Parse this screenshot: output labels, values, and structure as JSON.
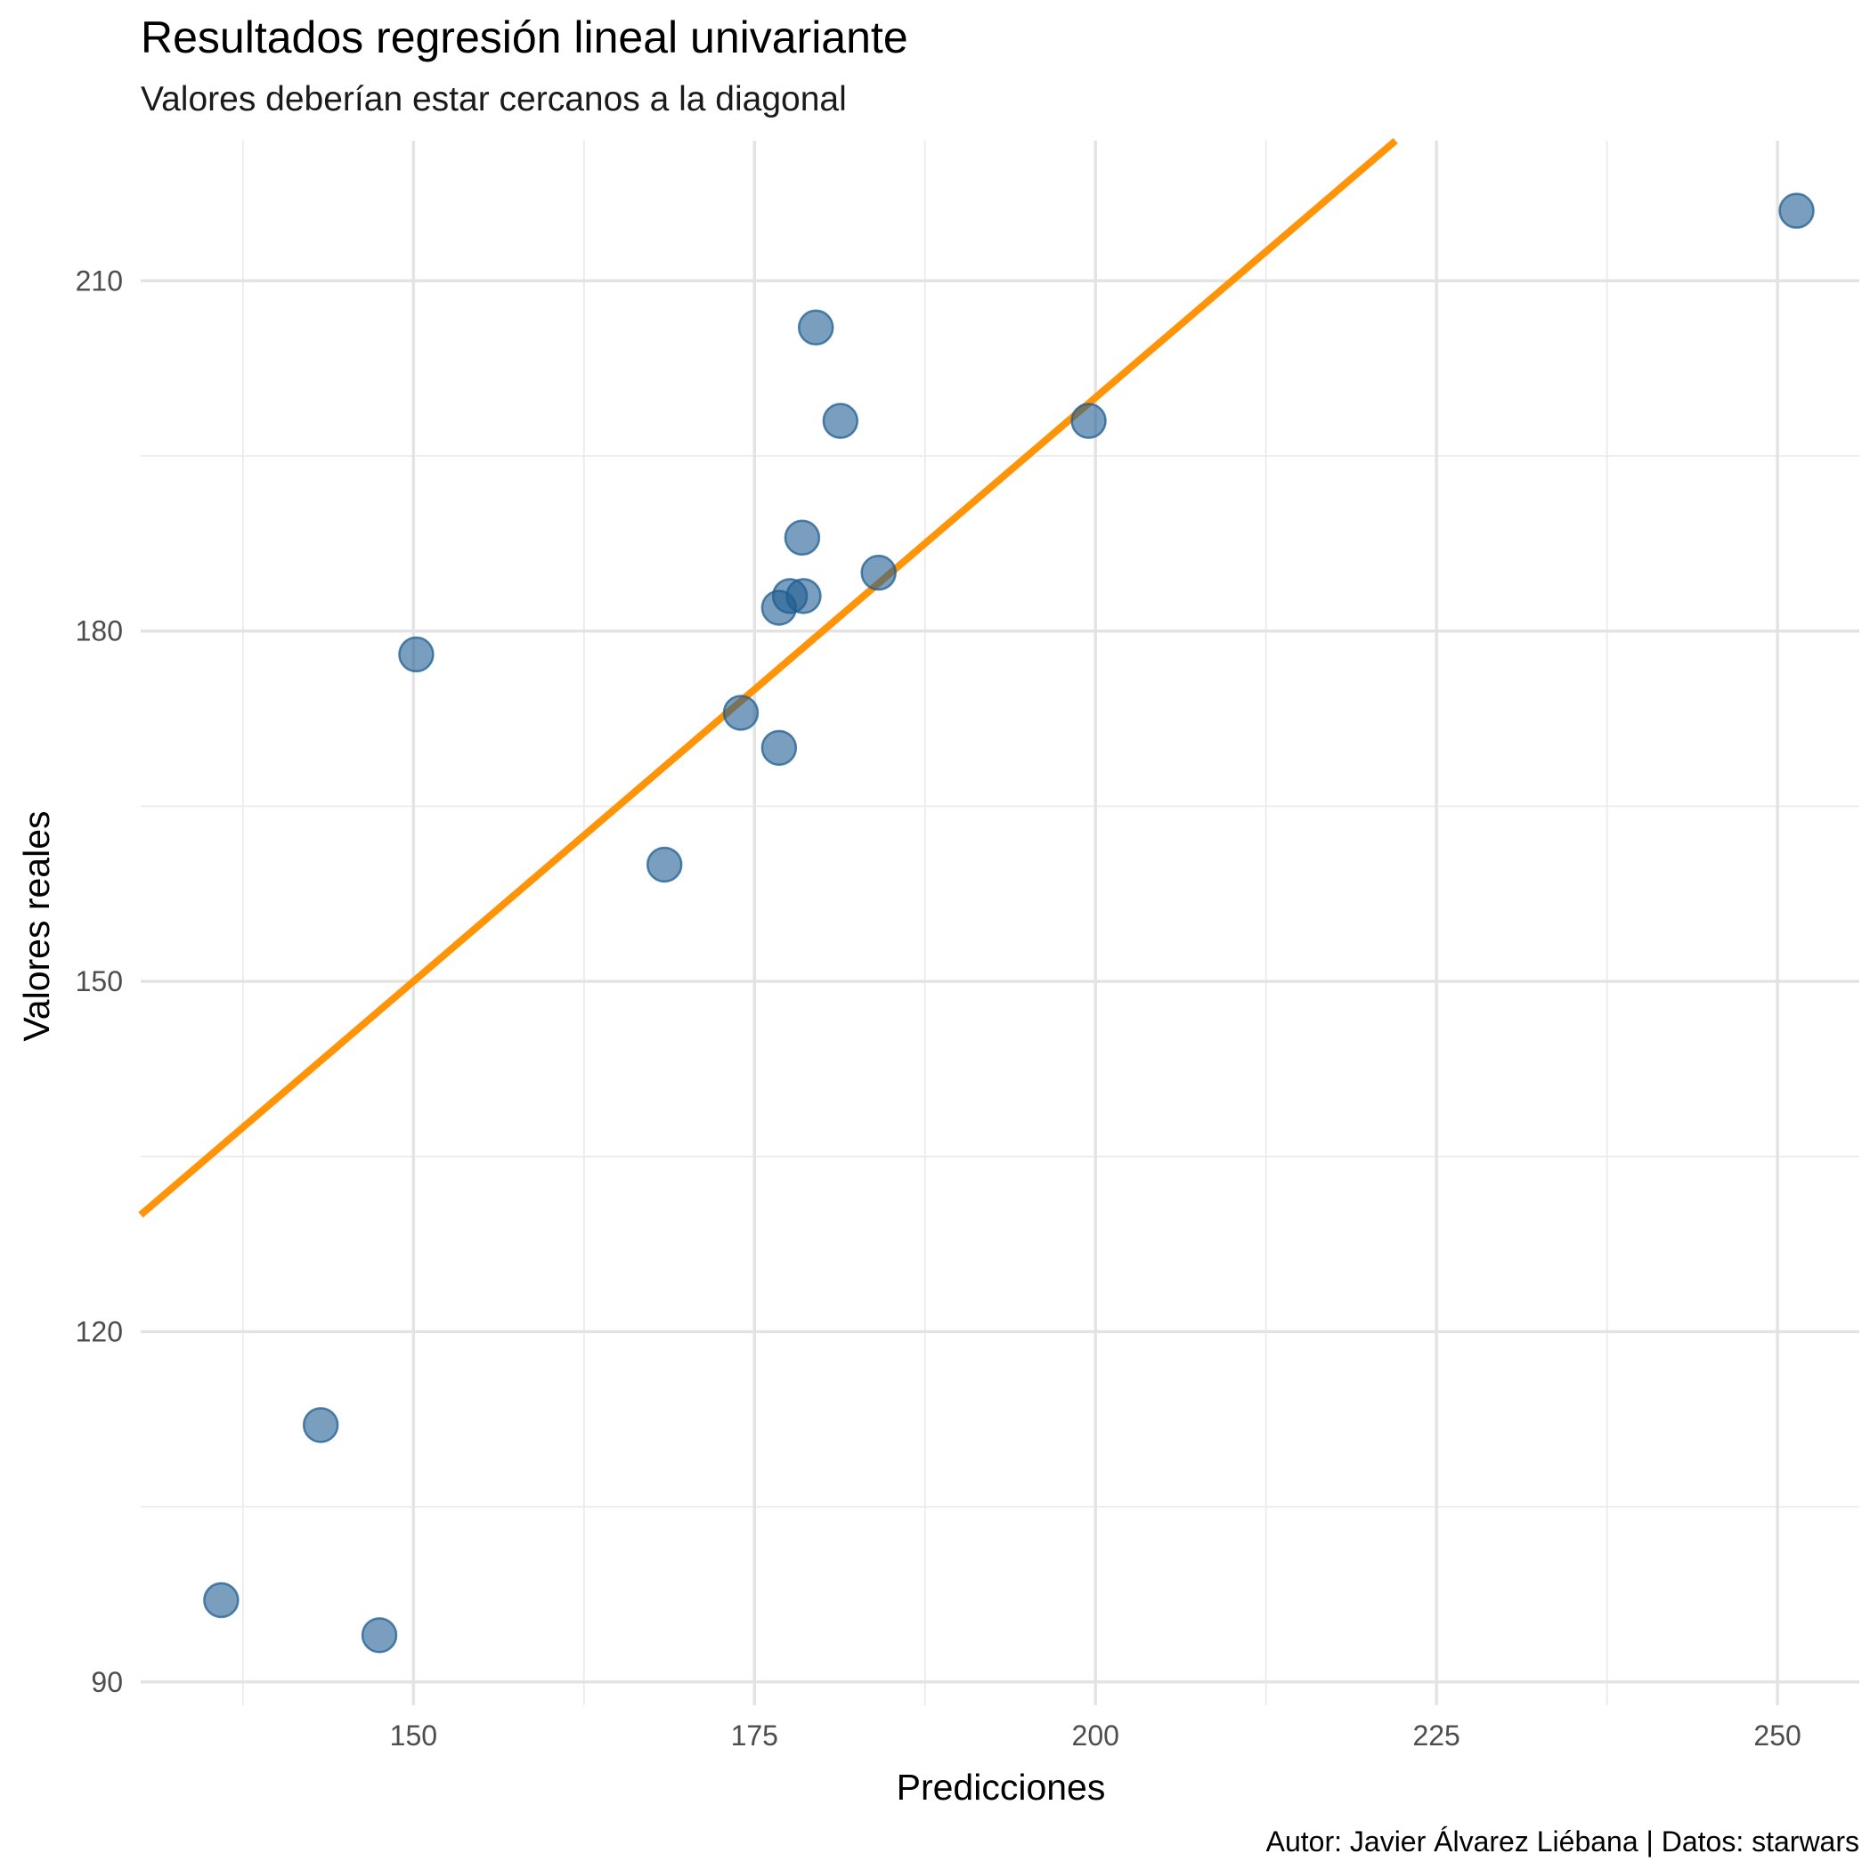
{
  "chart_data": {
    "type": "scatter",
    "title": "Resultados regresión lineal univariante",
    "subtitle": "Valores deberían estar cercanos a la diagonal",
    "xlabel": "Predicciones",
    "ylabel": "Valores reales",
    "caption": "Autor: Javier Álvarez Liébana | Datos: starwars",
    "xlim": [
      130,
      256
    ],
    "ylim": [
      88,
      222
    ],
    "x_ticks": [
      150,
      175,
      200,
      225,
      250
    ],
    "y_ticks": [
      90,
      120,
      150,
      180,
      210
    ],
    "grid": true,
    "points": [
      {
        "x": 251.4,
        "y": 216
      },
      {
        "x": 179.5,
        "y": 206
      },
      {
        "x": 181.3,
        "y": 198
      },
      {
        "x": 199.5,
        "y": 198
      },
      {
        "x": 178.5,
        "y": 188
      },
      {
        "x": 184.1,
        "y": 185
      },
      {
        "x": 177.6,
        "y": 183
      },
      {
        "x": 178.6,
        "y": 183
      },
      {
        "x": 176.8,
        "y": 182
      },
      {
        "x": 150.2,
        "y": 178
      },
      {
        "x": 174.0,
        "y": 173
      },
      {
        "x": 176.8,
        "y": 170
      },
      {
        "x": 168.4,
        "y": 160
      },
      {
        "x": 143.2,
        "y": 112
      },
      {
        "x": 135.9,
        "y": 97
      },
      {
        "x": 147.5,
        "y": 94
      }
    ],
    "reference_line": {
      "type": "identity",
      "slope": 1,
      "intercept": 0,
      "color": "#FF9408"
    },
    "point_color": "#1F5E92",
    "point_fill_opacity": 0.6
  }
}
